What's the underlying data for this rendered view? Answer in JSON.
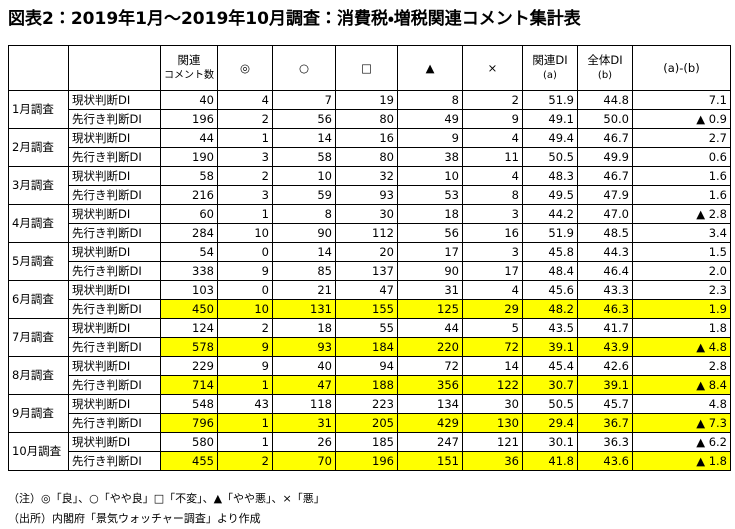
{
  "header": {
    "title": "図表2：2019年1月～2019年10月調査：消費税・増税関連コメント集計表"
  },
  "table": {
    "columns": [
      [
        ""
      ],
      [
        ""
      ],
      [
        "関連",
        "コメント数"
      ],
      [
        "◎"
      ],
      [
        "○"
      ],
      [
        "□"
      ],
      [
        "▲"
      ],
      [
        "×"
      ],
      [
        "関連DI",
        "(a)"
      ],
      [
        "全体DI",
        "(b)"
      ],
      [
        "(a)-(b)"
      ]
    ],
    "groups": [
      {
        "month": "1月調査",
        "rows": [
          {
            "label": "現状判断DI",
            "cells": [
              "40",
              "4",
              "7",
              "19",
              "8",
              "2",
              "51.9",
              "44.8",
              "7.1"
            ],
            "highlight": false
          },
          {
            "label": "先行き判断DI",
            "cells": [
              "196",
              "2",
              "56",
              "80",
              "49",
              "9",
              "49.1",
              "50.0",
              "▲ 0.9"
            ],
            "highlight": false
          }
        ]
      },
      {
        "month": "2月調査",
        "rows": [
          {
            "label": "現状判断DI",
            "cells": [
              "44",
              "1",
              "14",
              "16",
              "9",
              "4",
              "49.4",
              "46.7",
              "2.7"
            ],
            "highlight": false
          },
          {
            "label": "先行き判断DI",
            "cells": [
              "190",
              "3",
              "58",
              "80",
              "38",
              "11",
              "50.5",
              "49.9",
              "0.6"
            ],
            "highlight": false
          }
        ]
      },
      {
        "month": "3月調査",
        "rows": [
          {
            "label": "現状判断DI",
            "cells": [
              "58",
              "2",
              "10",
              "32",
              "10",
              "4",
              "48.3",
              "46.7",
              "1.6"
            ],
            "highlight": false
          },
          {
            "label": "先行き判断DI",
            "cells": [
              "216",
              "3",
              "59",
              "93",
              "53",
              "8",
              "49.5",
              "47.9",
              "1.6"
            ],
            "highlight": false
          }
        ]
      },
      {
        "month": "4月調査",
        "rows": [
          {
            "label": "現状判断DI",
            "cells": [
              "60",
              "1",
              "8",
              "30",
              "18",
              "3",
              "44.2",
              "47.0",
              "▲ 2.8"
            ],
            "highlight": false
          },
          {
            "label": "先行き判断DI",
            "cells": [
              "284",
              "10",
              "90",
              "112",
              "56",
              "16",
              "51.9",
              "48.5",
              "3.4"
            ],
            "highlight": false
          }
        ]
      },
      {
        "month": "5月調査",
        "rows": [
          {
            "label": "現状判断DI",
            "cells": [
              "54",
              "0",
              "14",
              "20",
              "17",
              "3",
              "45.8",
              "44.3",
              "1.5"
            ],
            "highlight": false
          },
          {
            "label": "先行き判断DI",
            "cells": [
              "338",
              "9",
              "85",
              "137",
              "90",
              "17",
              "48.4",
              "46.4",
              "2.0"
            ],
            "highlight": false
          }
        ]
      },
      {
        "month": "6月調査",
        "rows": [
          {
            "label": "現状判断DI",
            "cells": [
              "103",
              "0",
              "21",
              "47",
              "31",
              "4",
              "45.6",
              "43.3",
              "2.3"
            ],
            "highlight": false
          },
          {
            "label": "先行き判断DI",
            "cells": [
              "450",
              "10",
              "131",
              "155",
              "125",
              "29",
              "48.2",
              "46.3",
              "1.9"
            ],
            "highlight": true
          }
        ]
      },
      {
        "month": "7月調査",
        "rows": [
          {
            "label": "現状判断DI",
            "cells": [
              "124",
              "2",
              "18",
              "55",
              "44",
              "5",
              "43.5",
              "41.7",
              "1.8"
            ],
            "highlight": false
          },
          {
            "label": "先行き判断DI",
            "cells": [
              "578",
              "9",
              "93",
              "184",
              "220",
              "72",
              "39.1",
              "43.9",
              "▲ 4.8"
            ],
            "highlight": true
          }
        ]
      },
      {
        "month": "8月調査",
        "rows": [
          {
            "label": "現状判断DI",
            "cells": [
              "229",
              "9",
              "40",
              "94",
              "72",
              "14",
              "45.4",
              "42.6",
              "2.8"
            ],
            "highlight": false
          },
          {
            "label": "先行き判断DI",
            "cells": [
              "714",
              "1",
              "47",
              "188",
              "356",
              "122",
              "30.7",
              "39.1",
              "▲ 8.4"
            ],
            "highlight": true
          }
        ]
      },
      {
        "month": "9月調査",
        "rows": [
          {
            "label": "現状判断DI",
            "cells": [
              "548",
              "43",
              "118",
              "223",
              "134",
              "30",
              "50.5",
              "45.7",
              "4.8"
            ],
            "highlight": false
          },
          {
            "label": "先行き判断DI",
            "cells": [
              "796",
              "1",
              "31",
              "205",
              "429",
              "130",
              "29.4",
              "36.7",
              "▲ 7.3"
            ],
            "highlight": true
          }
        ]
      },
      {
        "month": "10月調査",
        "rows": [
          {
            "label": "現状判断DI",
            "cells": [
              "580",
              "1",
              "26",
              "185",
              "247",
              "121",
              "30.1",
              "36.3",
              "▲ 6.2"
            ],
            "highlight": false
          },
          {
            "label": "先行き判断DI",
            "cells": [
              "455",
              "2",
              "70",
              "196",
              "151",
              "36",
              "41.8",
              "43.6",
              "▲ 1.8"
            ],
            "highlight": true
          }
        ]
      }
    ]
  },
  "notes": [
    "（注）◎「良」、○「やや良」□「不変」、▲「やや悪」、×「悪」",
    "（出所）内閣府「景気ウォッチャー調査」より作成"
  ]
}
